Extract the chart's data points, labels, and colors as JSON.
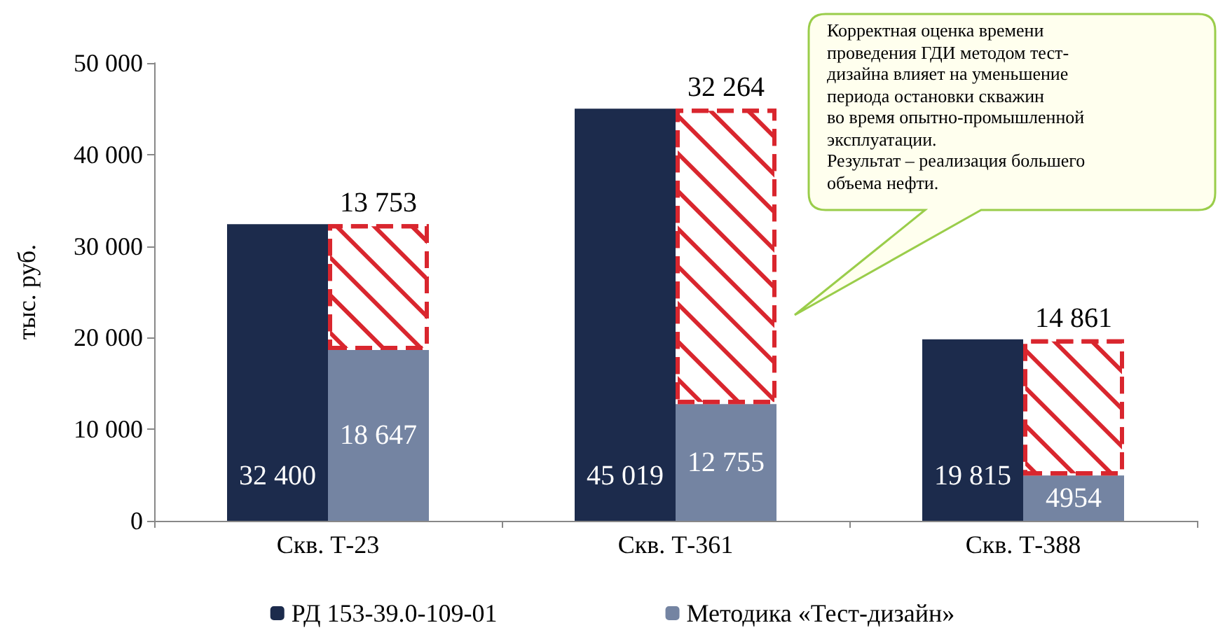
{
  "chart_data": {
    "type": "bar",
    "ylabel": "тыс. руб.",
    "categories": [
      "Скв. Т-23",
      "Скв. Т-361",
      "Скв. Т-388"
    ],
    "series": [
      {
        "name": "РД 153-39.0-109-01",
        "color": "#1c2b4c",
        "values": [
          32400,
          45019,
          19815
        ],
        "value_labels": [
          "32 400",
          "45 019",
          "19 815"
        ]
      },
      {
        "name": "Методика «Тест-дизайн»",
        "color": "#7484a2",
        "values": [
          18647,
          12755,
          4954
        ],
        "value_labels": [
          "18 647",
          "12 755",
          "4954"
        ]
      },
      {
        "color": "#d9262e",
        "values": [
          13753,
          32264,
          14861
        ],
        "base": [
          18647,
          12755,
          4954
        ],
        "value_labels": [
          "13 753",
          "32 264",
          "14 861"
        ],
        "line_style": "dashed"
      }
    ],
    "ylim": [
      0,
      50000
    ],
    "yticks": [
      {
        "value": 0,
        "label": "0"
      },
      {
        "value": 10000,
        "label": "10 000"
      },
      {
        "value": 20000,
        "label": "20 000"
      },
      {
        "value": 30000,
        "label": "30 000"
      },
      {
        "value": 40000,
        "label": "40 000"
      },
      {
        "value": 50000,
        "label": "50 000"
      }
    ],
    "grid": false,
    "legend": "bottom",
    "annotations": [
      "Корректная оценка времени\nпроведения ГДИ методом тест-\nдизайна влияет на уменьшение\nпериода остановки скважин\nво время опытно-промышленной\nэксплуатации.\nРезультат – реализация большего\nобъема нефти."
    ]
  }
}
